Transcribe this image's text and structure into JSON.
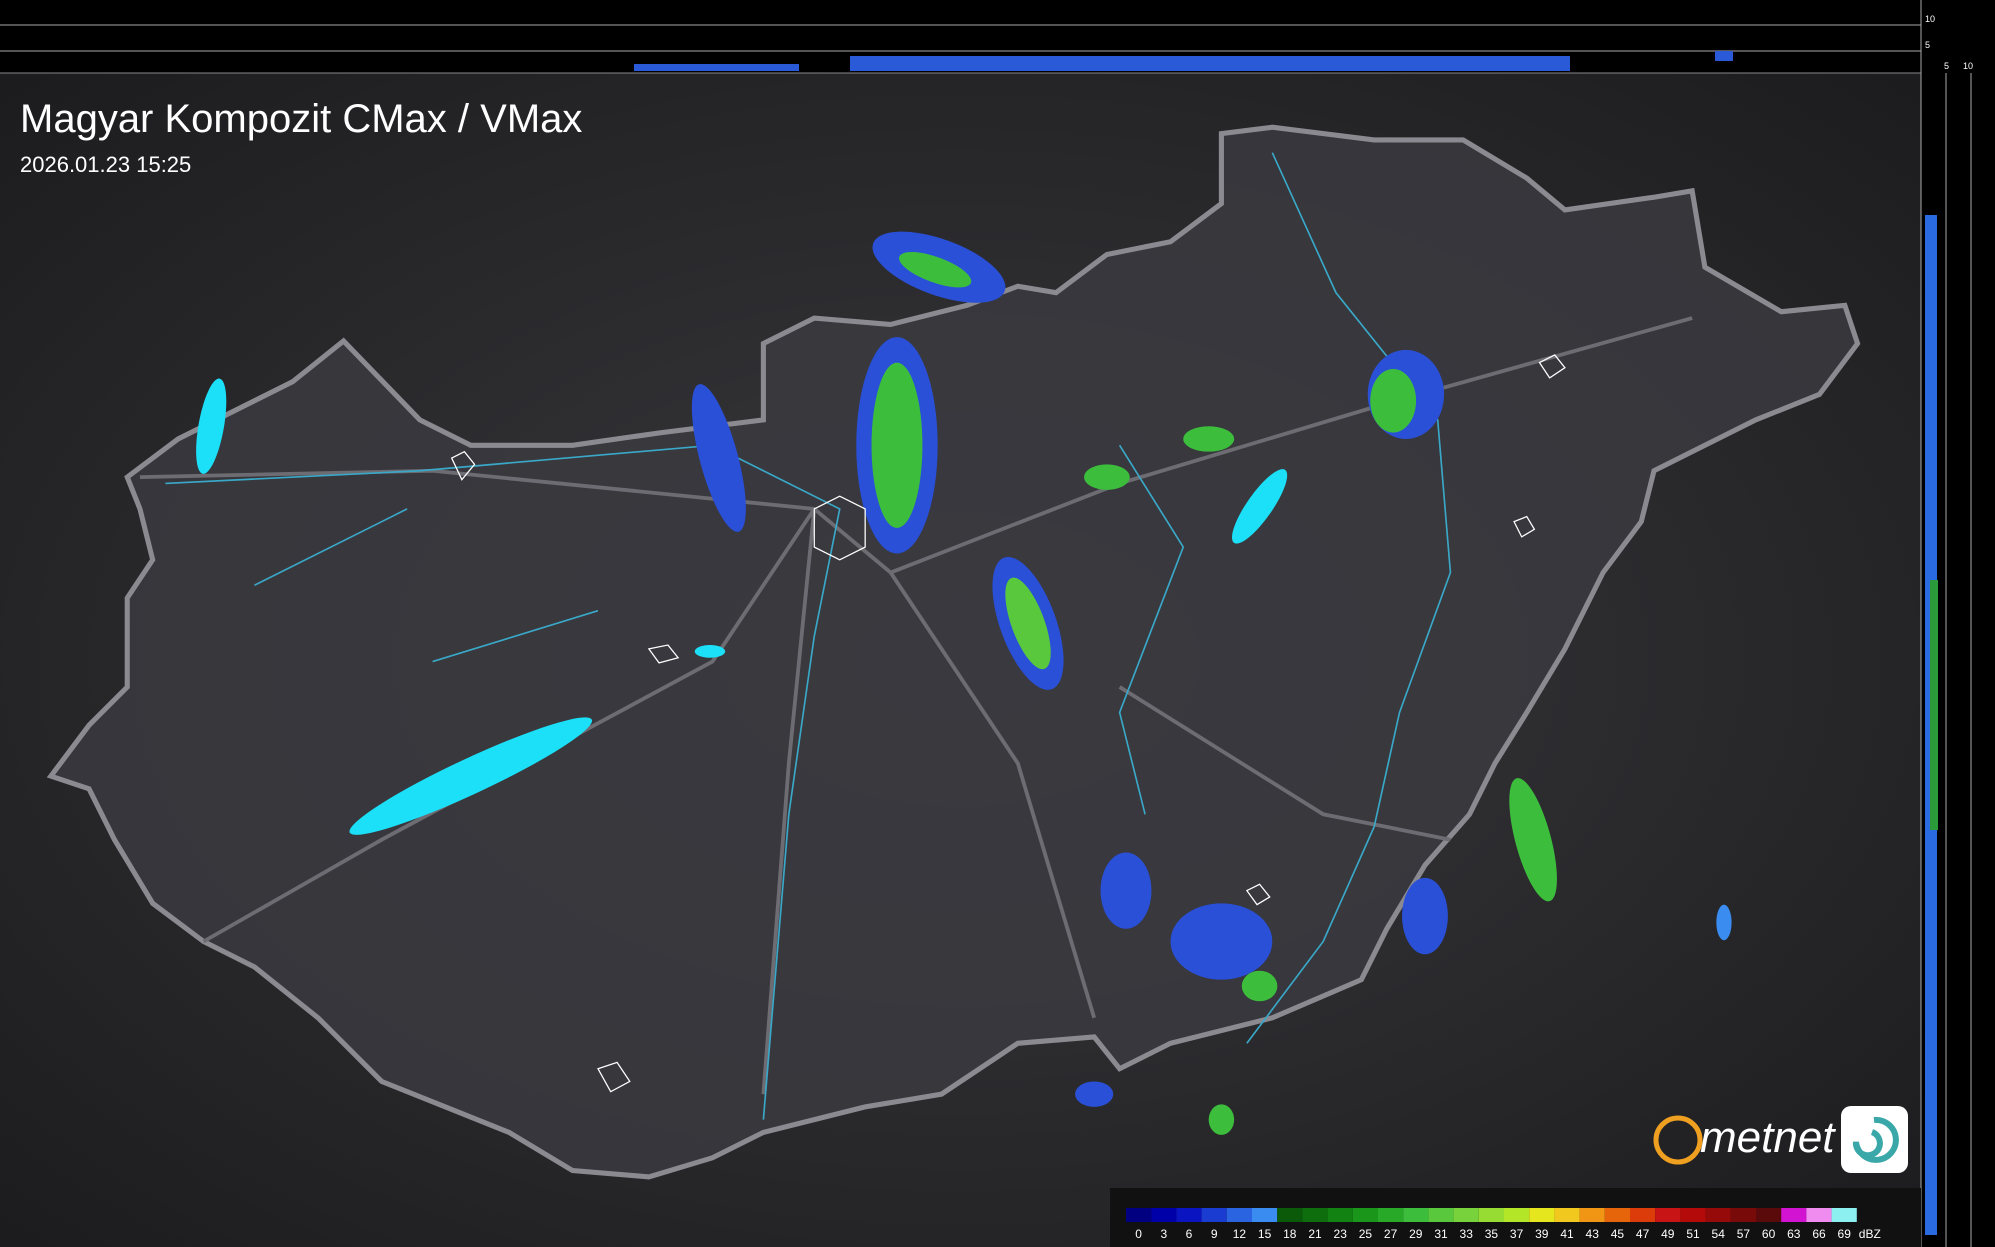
{
  "header": {
    "title": "Magyar Kompozit CMax / VMax",
    "timestamp": "2026.01.23 15:25"
  },
  "profile_axes": {
    "top": [
      "10",
      "5"
    ],
    "side": [
      "5",
      "10"
    ]
  },
  "logo": {
    "text": "metnet"
  },
  "legend": {
    "unit": "dBZ",
    "values": [
      0,
      3,
      6,
      9,
      12,
      15,
      18,
      21,
      23,
      25,
      27,
      29,
      31,
      33,
      35,
      37,
      39,
      41,
      43,
      45,
      47,
      49,
      51,
      54,
      57,
      60,
      63,
      66,
      69
    ],
    "colors": [
      "#000080",
      "#0000a8",
      "#0a14c0",
      "#1a3cd0",
      "#2a64e0",
      "#3a8cf0",
      "#0a5a0a",
      "#0e6e0e",
      "#128212",
      "#1a961a",
      "#28aa28",
      "#3cbe3c",
      "#5ac83c",
      "#78d23c",
      "#96dc32",
      "#b4e628",
      "#e6e61e",
      "#f0c81e",
      "#f09614",
      "#e6640a",
      "#dc3c0a",
      "#c81414",
      "#b40a0a",
      "#960a0a",
      "#780a0a",
      "#5a0a0a",
      "#d214d2",
      "#f08cf0",
      "#8cf0f0"
    ]
  }
}
